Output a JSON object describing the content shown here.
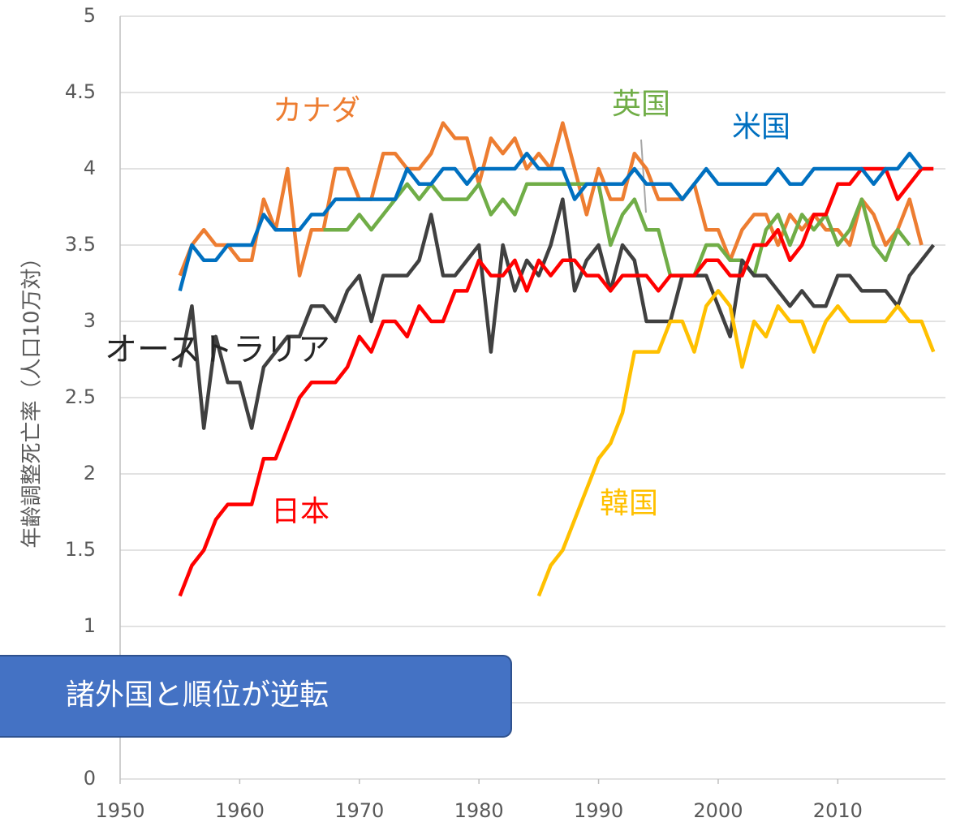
{
  "chart_data": {
    "type": "line",
    "y_label": "年齢調整死亡率（人口10万対）",
    "annotation": "諸外国と順位が逆転",
    "x": [
      1955,
      1956,
      1957,
      1958,
      1959,
      1960,
      1961,
      1962,
      1963,
      1964,
      1965,
      1966,
      1967,
      1968,
      1969,
      1970,
      1971,
      1972,
      1973,
      1974,
      1975,
      1976,
      1977,
      1978,
      1979,
      1980,
      1981,
      1982,
      1983,
      1984,
      1985,
      1986,
      1987,
      1988,
      1989,
      1990,
      1991,
      1992,
      1993,
      1994,
      1995,
      1996,
      1997,
      1998,
      1999,
      2000,
      2001,
      2002,
      2003,
      2004,
      2005,
      2006,
      2007,
      2008,
      2009,
      2010,
      2011,
      2012,
      2013,
      2014,
      2015,
      2016,
      2017,
      2018
    ],
    "series": [
      {
        "name": "カナダ",
        "color": "#ed7d31",
        "values": [
          3.3,
          3.5,
          3.6,
          3.5,
          3.5,
          3.4,
          3.4,
          3.8,
          3.6,
          4.0,
          3.3,
          3.6,
          3.6,
          4.0,
          4.0,
          3.8,
          3.8,
          4.1,
          4.1,
          4.0,
          4.0,
          4.1,
          4.3,
          4.2,
          4.2,
          3.9,
          4.2,
          4.1,
          4.2,
          4.0,
          4.1,
          4.0,
          4.3,
          4.0,
          3.7,
          4.0,
          3.8,
          3.8,
          4.1,
          4.0,
          3.8,
          3.8,
          3.8,
          3.9,
          3.6,
          3.6,
          3.4,
          3.6,
          3.7,
          3.7,
          3.5,
          3.7,
          3.6,
          3.7,
          3.6,
          3.6,
          3.5,
          3.8,
          3.7,
          3.5,
          3.6,
          3.8,
          3.5,
          null
        ]
      },
      {
        "name": "英国",
        "color": "#70ad47",
        "values": [
          null,
          null,
          null,
          null,
          null,
          null,
          null,
          null,
          null,
          null,
          null,
          null,
          3.6,
          3.6,
          3.6,
          3.7,
          3.6,
          3.7,
          3.8,
          3.9,
          3.8,
          3.9,
          3.8,
          3.8,
          3.8,
          3.9,
          3.7,
          3.8,
          3.7,
          3.9,
          3.9,
          3.9,
          3.9,
          3.9,
          3.9,
          3.9,
          3.5,
          3.7,
          3.8,
          3.6,
          3.6,
          3.3,
          3.3,
          3.3,
          3.5,
          3.5,
          3.4,
          3.4,
          3.3,
          3.6,
          3.7,
          3.5,
          3.7,
          3.6,
          3.7,
          3.5,
          3.6,
          3.8,
          3.5,
          3.4,
          3.6,
          3.5,
          null,
          null
        ]
      },
      {
        "name": "オーストラリア",
        "color": "#404040",
        "values": [
          2.7,
          3.1,
          2.3,
          2.9,
          2.6,
          2.6,
          2.3,
          2.7,
          2.8,
          2.9,
          2.9,
          3.1,
          3.1,
          3.0,
          3.2,
          3.3,
          3.0,
          3.3,
          3.3,
          3.3,
          3.4,
          3.7,
          3.3,
          3.3,
          3.4,
          3.5,
          2.8,
          3.5,
          3.2,
          3.4,
          3.3,
          3.5,
          3.8,
          3.2,
          3.4,
          3.5,
          3.2,
          3.5,
          3.4,
          3.0,
          3.0,
          3.0,
          3.3,
          3.3,
          3.3,
          3.1,
          2.9,
          3.4,
          3.3,
          3.3,
          3.2,
          3.1,
          3.2,
          3.1,
          3.1,
          3.3,
          3.3,
          3.2,
          3.2,
          3.2,
          3.1,
          3.3,
          3.4,
          3.5
        ]
      },
      {
        "name": "韓国",
        "color": "#ffc000",
        "values": [
          null,
          null,
          null,
          null,
          null,
          null,
          null,
          null,
          null,
          null,
          null,
          null,
          null,
          null,
          null,
          null,
          null,
          null,
          null,
          null,
          null,
          null,
          null,
          null,
          null,
          null,
          null,
          null,
          null,
          null,
          1.2,
          1.4,
          1.5,
          1.7,
          1.9,
          2.1,
          2.2,
          2.4,
          2.8,
          2.8,
          2.8,
          3.0,
          3.0,
          2.8,
          3.1,
          3.2,
          3.1,
          2.7,
          3.0,
          2.9,
          3.1,
          3.0,
          3.0,
          2.8,
          3.0,
          3.1,
          3.0,
          3.0,
          3.0,
          3.0,
          3.1,
          3.0,
          3.0,
          2.8
        ]
      },
      {
        "name": "日本",
        "color": "#ff0000",
        "values": [
          1.2,
          1.4,
          1.5,
          1.7,
          1.8,
          1.8,
          1.8,
          2.1,
          2.1,
          2.3,
          2.5,
          2.6,
          2.6,
          2.6,
          2.7,
          2.9,
          2.8,
          3.0,
          3.0,
          2.9,
          3.1,
          3.0,
          3.0,
          3.2,
          3.2,
          3.4,
          3.3,
          3.3,
          3.4,
          3.2,
          3.4,
          3.3,
          3.4,
          3.4,
          3.3,
          3.3,
          3.2,
          3.3,
          3.3,
          3.3,
          3.2,
          3.3,
          3.3,
          3.3,
          3.4,
          3.4,
          3.3,
          3.3,
          3.5,
          3.5,
          3.6,
          3.4,
          3.5,
          3.7,
          3.7,
          3.9,
          3.9,
          4.0,
          4.0,
          4.0,
          3.8,
          3.9,
          4.0,
          4.0
        ]
      },
      {
        "name": "米国",
        "color": "#0070c0",
        "values": [
          3.2,
          3.5,
          3.4,
          3.4,
          3.5,
          3.5,
          3.5,
          3.7,
          3.6,
          3.6,
          3.6,
          3.7,
          3.7,
          3.8,
          3.8,
          3.8,
          3.8,
          3.8,
          3.8,
          4.0,
          3.9,
          3.9,
          4.0,
          4.0,
          3.9,
          4.0,
          4.0,
          4.0,
          4.0,
          4.1,
          4.0,
          4.0,
          4.0,
          3.8,
          3.9,
          3.9,
          3.9,
          3.9,
          4.0,
          3.9,
          3.9,
          3.9,
          3.8,
          3.9,
          4.0,
          3.9,
          3.9,
          3.9,
          3.9,
          3.9,
          4.0,
          3.9,
          3.9,
          4.0,
          4.0,
          4.0,
          4.0,
          4.0,
          3.9,
          4.0,
          4.0,
          4.1,
          4.0,
          null
        ]
      }
    ],
    "xlim": [
      1950,
      2019
    ],
    "xticks": [
      1950,
      1960,
      1970,
      1980,
      1990,
      2000,
      2010
    ],
    "ylim": [
      0,
      5
    ],
    "yticks": [
      0,
      0.5,
      1,
      1.5,
      2,
      2.5,
      3,
      3.5,
      4,
      4.5,
      5
    ],
    "grid": true
  }
}
